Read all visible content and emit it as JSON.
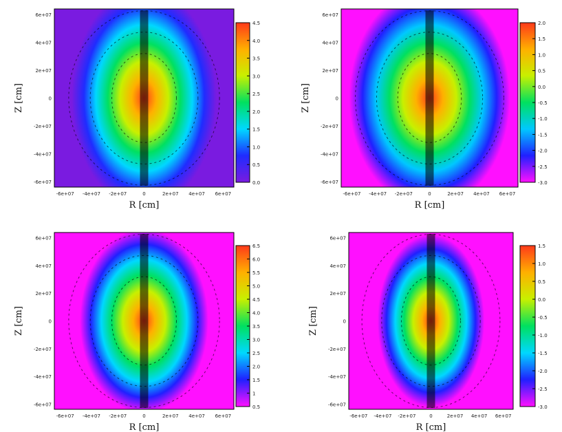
{
  "figure": {
    "description_none": ""
  },
  "chart_data": [
    {
      "type": "heatmap",
      "panel": "top-left",
      "xlabel": "R [cm]",
      "ylabel": "Z [cm]",
      "xticks": [
        "-6e+07",
        "-4e+07",
        "-2e+07",
        "0",
        "2e+07",
        "4e+07",
        "6e+07"
      ],
      "yticks": [
        "6e+07",
        "4e+07",
        "2e+07",
        "0",
        "-2e+07",
        "-4e+07",
        "-6e+07"
      ],
      "colorbar_ticks": [
        "4.5",
        "4.0",
        "3.5",
        "3.0",
        "2.5",
        "2.0",
        "1.5",
        "1.0",
        "0.5",
        "0.0"
      ],
      "colorbar_range": [
        0.0,
        4.5
      ],
      "colormap": [
        "#7a1be0",
        "#1f2cff",
        "#00d8ff",
        "#00e060",
        "#c8f000",
        "#ffb000",
        "#ff3a1a"
      ]
    },
    {
      "type": "heatmap",
      "panel": "top-right",
      "xlabel": "R [cm]",
      "ylabel": "Z [cm]",
      "xticks": [
        "-6e+07",
        "-4e+07",
        "-2e+07",
        "0",
        "2e+07",
        "4e+07",
        "6e+07"
      ],
      "yticks": [
        "6e+07",
        "4e+07",
        "2e+07",
        "0",
        "-2e+07",
        "-4e+07",
        "-6e+07"
      ],
      "colorbar_ticks": [
        "2.0",
        "1.5",
        "1.0",
        "0.5",
        "0.0",
        "-0.5",
        "-1.0",
        "-1.5",
        "-2.0",
        "-2.5",
        "-3.0"
      ],
      "colorbar_range": [
        -3.0,
        2.0
      ],
      "colormap": [
        "#ff10ff",
        "#2020ff",
        "#00c8ff",
        "#00e060",
        "#c8f000",
        "#ffb000",
        "#ff3a1a"
      ]
    },
    {
      "type": "heatmap",
      "panel": "bottom-left",
      "xlabel": "R [cm]",
      "ylabel": "Z [cm]",
      "xticks": [
        "-6e+07",
        "-4e+07",
        "-2e+07",
        "0",
        "2e+07",
        "4e+07",
        "6e+07"
      ],
      "yticks": [
        "6e+07",
        "4e+07",
        "2e+07",
        "0",
        "-2e+07",
        "-4e+07",
        "-6e+07"
      ],
      "colorbar_ticks": [
        "6.5",
        "6.0",
        "5.5",
        "5.0",
        "4.5",
        "4.0",
        "3.5",
        "3.0",
        "2.5",
        "2.0",
        "1.5",
        "1",
        "0.5"
      ],
      "colorbar_range": [
        0.5,
        6.5
      ],
      "colormap": [
        "#ff10ff",
        "#2020ff",
        "#00d8ff",
        "#00e060",
        "#c8f000",
        "#ffb000",
        "#ff3a1a"
      ]
    },
    {
      "type": "heatmap",
      "panel": "bottom-right",
      "xlabel": "R [cm]",
      "ylabel": "Z [cm]",
      "xticks": [
        "-6e+07",
        "-4e+07",
        "-2e+07",
        "0",
        "2e+07",
        "4e+07",
        "6e+07"
      ],
      "yticks": [
        "6e+07",
        "4e+07",
        "2e+07",
        "0",
        "-2e+07",
        "-4e+07",
        "-6e+07"
      ],
      "colorbar_ticks": [
        "1.5",
        "1.0",
        "0.5",
        "0.0",
        "-0.5",
        "-1.0",
        "-1.5",
        "-2.0",
        "-2.5",
        "-3.0"
      ],
      "colorbar_range": [
        -3.0,
        1.5
      ],
      "colormap": [
        "#ff10ff",
        "#2020ff",
        "#00d8ff",
        "#00e060",
        "#c8f000",
        "#ffb000",
        "#ff3a1a"
      ]
    }
  ]
}
